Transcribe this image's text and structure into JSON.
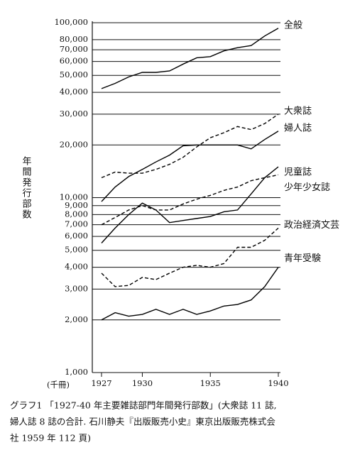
{
  "chart_data": {
    "type": "line",
    "y_label": "年間発行部数",
    "y_unit": "(千冊)",
    "log_y": true,
    "grid": true,
    "x": [
      1927,
      1928,
      1929,
      1930,
      1931,
      1932,
      1933,
      1934,
      1935,
      1936,
      1937,
      1938,
      1939,
      1940
    ],
    "xlim": [
      1927,
      1940
    ],
    "xticks": [
      1927,
      1930,
      1935,
      1940
    ],
    "ylim": [
      1000,
      100000
    ],
    "yticks": [
      {
        "value": 1000,
        "label": "1,000"
      },
      {
        "value": 2000,
        "label": "2,000"
      },
      {
        "value": 3000,
        "label": "3,000"
      },
      {
        "value": 4000,
        "label": "4,000"
      },
      {
        "value": 5000,
        "label": "5,000"
      },
      {
        "value": 6000,
        "label": "6,000"
      },
      {
        "value": 7000,
        "label": "7,000"
      },
      {
        "value": 8000,
        "label": "8,000"
      },
      {
        "value": 9000,
        "label": "9,000"
      },
      {
        "value": 10000,
        "label": "10,000"
      },
      {
        "value": 20000,
        "label": "20,000"
      },
      {
        "value": 30000,
        "label": "30,000"
      },
      {
        "value": 40000,
        "label": "40,000"
      },
      {
        "value": 50000,
        "label": "50,000"
      },
      {
        "value": 60000,
        "label": "60,000"
      },
      {
        "value": 70000,
        "label": "70,000"
      },
      {
        "value": 80000,
        "label": "80,000"
      },
      {
        "value": 100000,
        "label": "100,000"
      }
    ],
    "series": [
      {
        "name": "全般",
        "color": "#000000",
        "style": "solid",
        "values": [
          42000,
          45000,
          49000,
          52000,
          52000,
          53000,
          58000,
          63000,
          64000,
          69000,
          72000,
          74000,
          84000,
          93000
        ]
      },
      {
        "name": "大衆誌",
        "color": "#000000",
        "style": "dashed",
        "values": [
          13000,
          14000,
          13800,
          13800,
          14500,
          15500,
          17000,
          19500,
          22000,
          23500,
          25500,
          24500,
          26500,
          30000
        ]
      },
      {
        "name": "婦人誌",
        "color": "#000000",
        "style": "solid",
        "values": [
          9500,
          11500,
          13200,
          14500,
          16000,
          17500,
          19800,
          20000,
          20000,
          20000,
          20000,
          19000,
          21500,
          24000
        ]
      },
      {
        "name": "児童誌",
        "color": "#000000",
        "style": "solid",
        "values": [
          5500,
          6700,
          8000,
          9300,
          8500,
          7200,
          7400,
          7600,
          7800,
          8300,
          8500,
          10500,
          13000,
          15000
        ]
      },
      {
        "name": "少年少女誌",
        "color": "#000000",
        "style": "dashed",
        "values": [
          7000,
          7700,
          8500,
          9000,
          8500,
          8500,
          9200,
          9800,
          10300,
          11000,
          11500,
          12500,
          13000,
          13500
        ]
      },
      {
        "name": "政治経済文芸",
        "color": "#000000",
        "style": "dashed",
        "values": [
          3700,
          3100,
          3150,
          3500,
          3400,
          3700,
          4000,
          4100,
          4000,
          4200,
          5200,
          5200,
          5700,
          6700
        ]
      },
      {
        "name": "青年受験",
        "color": "#000000",
        "style": "solid",
        "values": [
          2000,
          2200,
          2100,
          2150,
          2300,
          2150,
          2300,
          2150,
          2250,
          2400,
          2450,
          2600,
          3100,
          4000
        ]
      }
    ],
    "caption": [
      "グラフ1 「1927-40 年主要雑誌部門年間発行部数」(大衆誌 11 誌,",
      "婦人誌 8 誌の合計. 石川静夫『出版販売小史』東京出版販売株式会",
      "社 1959 年 112 頁)"
    ]
  }
}
